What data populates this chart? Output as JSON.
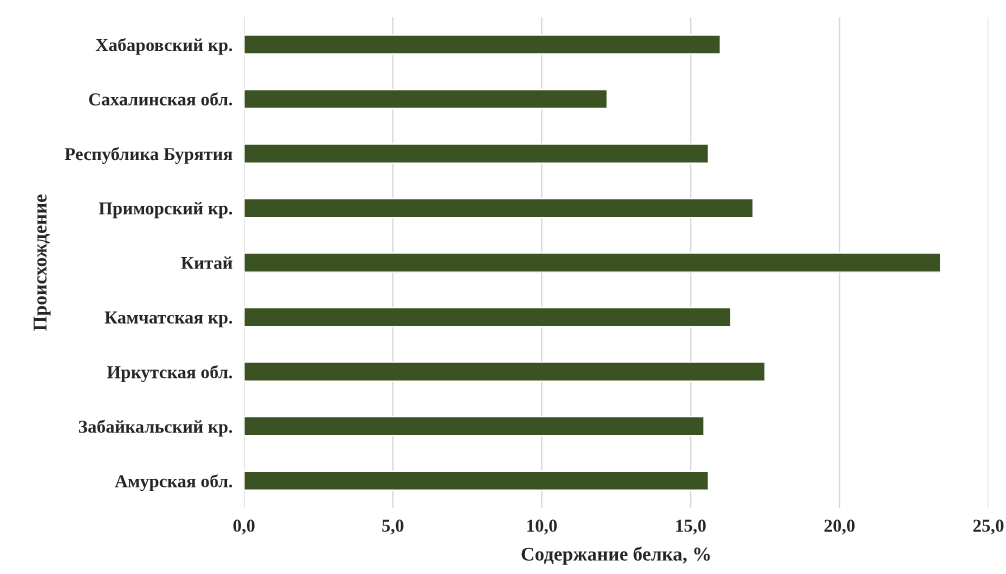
{
  "chart_data": {
    "type": "bar",
    "orientation": "horizontal",
    "xlabel": "Содержание белка, %",
    "ylabel": "Происхождение",
    "categories": [
      "Хабаровский кр.",
      "Сахалинская обл.",
      "Республика Бурятия",
      "Приморский кр.",
      "Китай",
      "Камчатская кр.",
      "Иркутская обл.",
      "Забайкальский кр.",
      "Амурская обл."
    ],
    "values": [
      16.0,
      12.2,
      15.6,
      17.1,
      23.4,
      16.35,
      17.5,
      15.45,
      15.6
    ],
    "color": "#3b5323",
    "xlim": [
      0,
      25
    ],
    "xticks": [
      {
        "value": 0,
        "label": "0,0"
      },
      {
        "value": 5,
        "label": "5,0"
      },
      {
        "value": 10,
        "label": "10,0"
      },
      {
        "value": 15,
        "label": "15,0"
      },
      {
        "value": 20,
        "label": "20,0"
      },
      {
        "value": 25,
        "label": "25,0"
      }
    ],
    "grid": "x"
  }
}
